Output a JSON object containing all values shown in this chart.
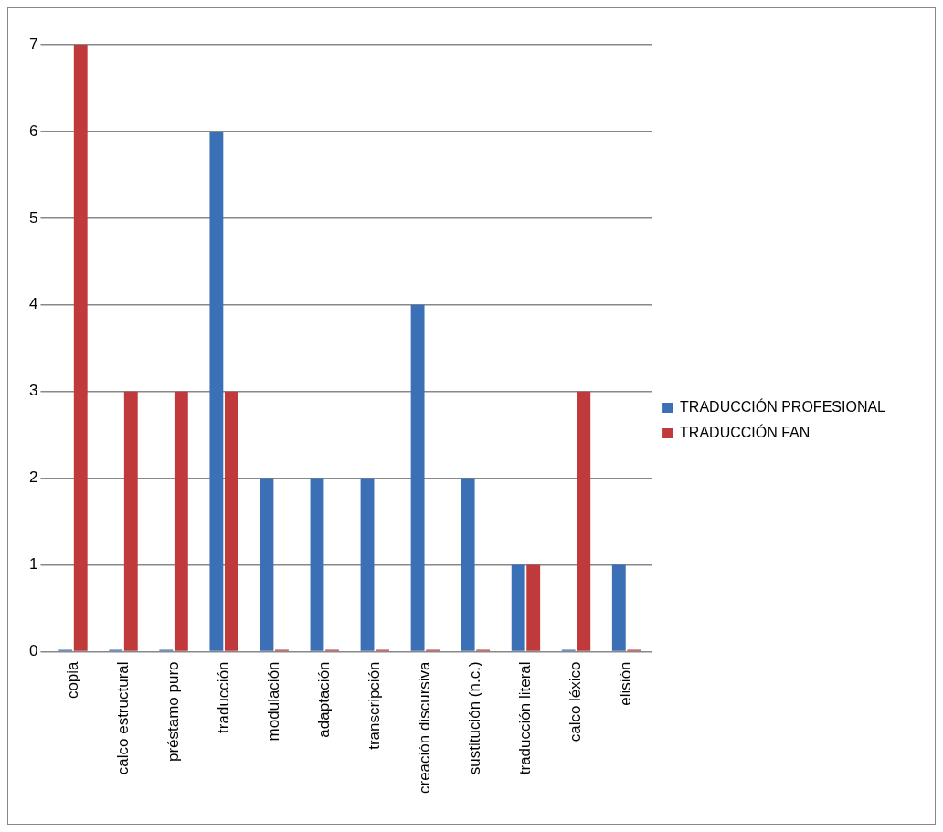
{
  "chart_data": {
    "type": "bar",
    "categories": [
      "copia",
      "calco estructural",
      "préstamo puro",
      "traducción",
      "modulación",
      "adaptación",
      "transcripción",
      "creación discursiva",
      "sustitución (n.c.)",
      "traducción literal",
      "calco léxico",
      "elisión"
    ],
    "series": [
      {
        "name": "TRADUCCIÓN PROFESIONAL",
        "color": "#3b6fb6",
        "values": [
          0,
          0,
          0,
          6,
          2,
          2,
          2,
          4,
          2,
          1,
          0,
          1
        ]
      },
      {
        "name": "TRADUCCIÓN FAN",
        "color": "#c0393b",
        "values": [
          7,
          3,
          3,
          3,
          0,
          0,
          0,
          0,
          0,
          1,
          3,
          0
        ]
      }
    ],
    "ylim": [
      0,
      7
    ],
    "yticks": [
      0,
      1,
      2,
      3,
      4,
      5,
      6,
      7
    ],
    "grid": "y",
    "legend": "right"
  }
}
